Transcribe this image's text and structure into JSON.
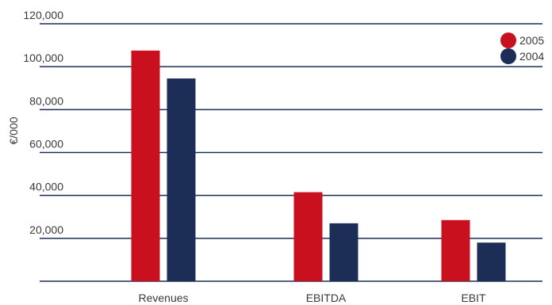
{
  "chart_data": {
    "type": "bar",
    "categories": [
      "Revenues",
      "EBITDA",
      "EBIT"
    ],
    "series": [
      {
        "name": "2005",
        "values": [
          107500,
          41500,
          28500
        ],
        "color": "#c8101e"
      },
      {
        "name": "2004",
        "values": [
          94500,
          27000,
          18000
        ],
        "color": "#1c2e55"
      }
    ],
    "ylabel": "€/000",
    "ylim": [
      0,
      120000
    ],
    "yticks": [
      {
        "value": 20000,
        "label": "20,000"
      },
      {
        "value": 40000,
        "label": "40,000"
      },
      {
        "value": 60000,
        "label": "60,000"
      },
      {
        "value": 80000,
        "label": "80,000"
      },
      {
        "value": 100000,
        "label": "100,000"
      },
      {
        "value": 120000,
        "label": "120,000"
      }
    ],
    "grid": true,
    "gridColor": "#1c2e55",
    "legend": "top-right"
  }
}
